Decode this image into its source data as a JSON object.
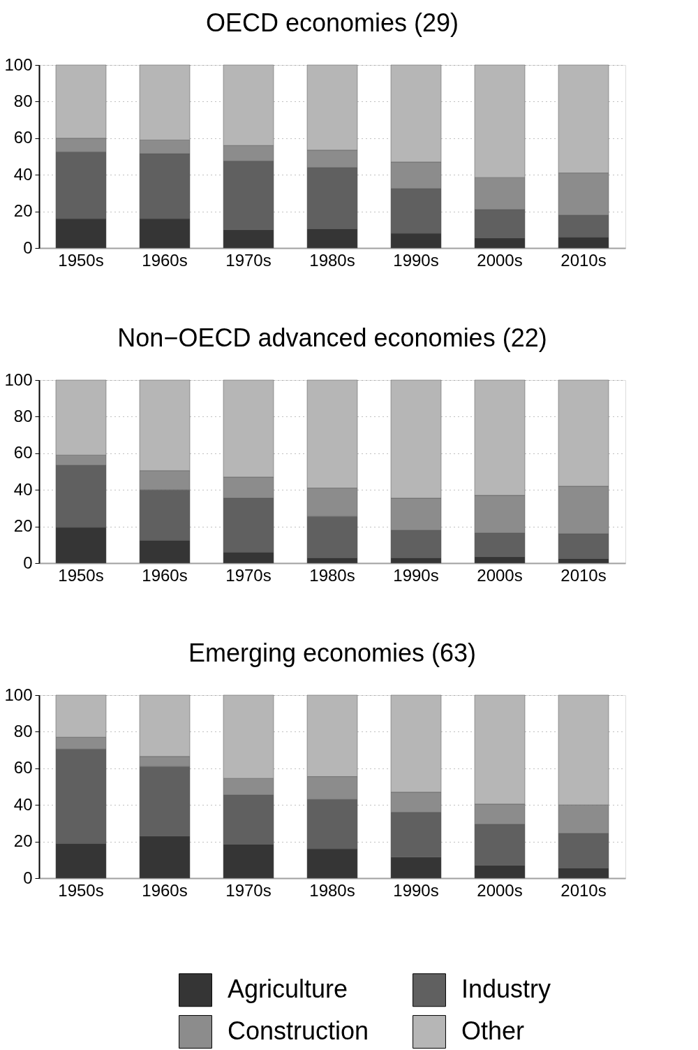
{
  "chart_data": [
    {
      "type": "bar",
      "title": "OECD economies (29)",
      "categories": [
        "1950s",
        "1960s",
        "1970s",
        "1980s",
        "1990s",
        "2000s",
        "2010s"
      ],
      "stacked": true,
      "ylim": [
        0,
        100
      ],
      "yticks": [
        0,
        20,
        40,
        60,
        80,
        100
      ],
      "grid": "y",
      "legend": "bottom",
      "series": [
        {
          "name": "Agriculture",
          "color": "#353535",
          "values": [
            16,
            16,
            10,
            10.5,
            8,
            5.5,
            6
          ]
        },
        {
          "name": "Industry",
          "color": "#606060",
          "values": [
            36.5,
            35.5,
            37.5,
            33.5,
            24.5,
            15.5,
            12
          ]
        },
        {
          "name": "Construction",
          "color": "#8c8c8c",
          "values": [
            7.5,
            7.5,
            8.5,
            9.5,
            14.5,
            17.5,
            23
          ]
        },
        {
          "name": "Other",
          "color": "#b6b6b6",
          "values": [
            40,
            41,
            44,
            46.5,
            53,
            61.5,
            59
          ]
        }
      ]
    },
    {
      "type": "bar",
      "title": "Non−OECD advanced economies (22)",
      "categories": [
        "1950s",
        "1960s",
        "1970s",
        "1980s",
        "1990s",
        "2000s",
        "2010s"
      ],
      "stacked": true,
      "ylim": [
        0,
        100
      ],
      "yticks": [
        0,
        20,
        40,
        60,
        80,
        100
      ],
      "grid": "y",
      "legend": "bottom",
      "series": [
        {
          "name": "Agriculture",
          "color": "#353535",
          "values": [
            19.5,
            12.5,
            6,
            3,
            3,
            3.5,
            2.5
          ]
        },
        {
          "name": "Industry",
          "color": "#606060",
          "values": [
            34,
            27.5,
            29.5,
            22.5,
            15,
            13,
            13.5
          ]
        },
        {
          "name": "Construction",
          "color": "#8c8c8c",
          "values": [
            5.5,
            10.5,
            11.5,
            15.5,
            17.5,
            20.5,
            26
          ]
        },
        {
          "name": "Other",
          "color": "#b6b6b6",
          "values": [
            41,
            49.5,
            53,
            59,
            64.5,
            63,
            58
          ]
        }
      ]
    },
    {
      "type": "bar",
      "title": "Emerging economies (63)",
      "categories": [
        "1950s",
        "1960s",
        "1970s",
        "1980s",
        "1990s",
        "2000s",
        "2010s"
      ],
      "stacked": true,
      "ylim": [
        0,
        100
      ],
      "yticks": [
        0,
        20,
        40,
        60,
        80,
        100
      ],
      "grid": "y",
      "legend": "bottom",
      "series": [
        {
          "name": "Agriculture",
          "color": "#353535",
          "values": [
            19,
            23,
            18.5,
            16,
            11.5,
            7,
            5.5
          ]
        },
        {
          "name": "Industry",
          "color": "#606060",
          "values": [
            51.5,
            38,
            27,
            27,
            24.5,
            22.5,
            19
          ]
        },
        {
          "name": "Construction",
          "color": "#8c8c8c",
          "values": [
            6.5,
            5.5,
            9,
            12.5,
            11,
            11,
            15.5
          ]
        },
        {
          "name": "Other",
          "color": "#b6b6b6",
          "values": [
            23,
            33.5,
            45.5,
            44.5,
            53,
            59.5,
            60
          ]
        }
      ]
    }
  ]
}
